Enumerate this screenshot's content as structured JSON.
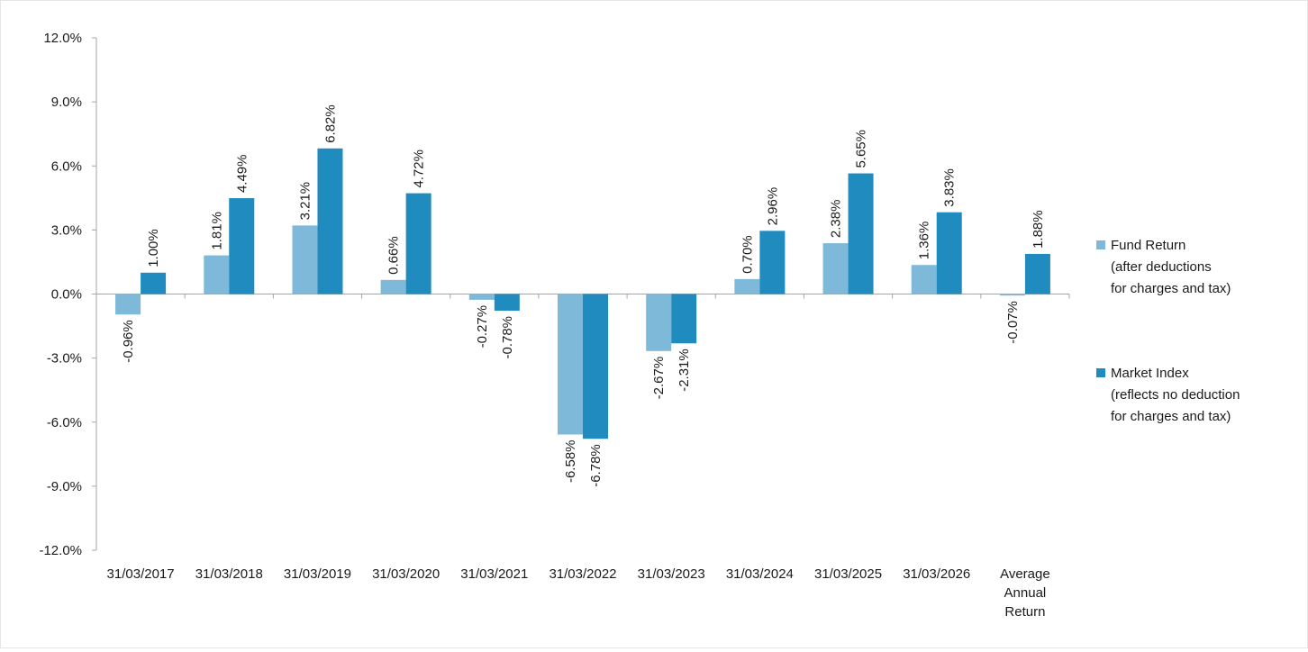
{
  "chart_data": {
    "type": "bar",
    "title": "",
    "xlabel": "",
    "ylabel": "",
    "categories": [
      [
        "31/03/2017"
      ],
      [
        "31/03/2018"
      ],
      [
        "31/03/2019"
      ],
      [
        "31/03/2020"
      ],
      [
        "31/03/2021"
      ],
      [
        "31/03/2022"
      ],
      [
        "31/03/2023"
      ],
      [
        "31/03/2024"
      ],
      [
        "31/03/2025"
      ],
      [
        "31/03/2026"
      ],
      [
        "Average",
        "Annual",
        "Return"
      ]
    ],
    "series": [
      {
        "name": [
          "Fund Return",
          "(after deductions",
          "for charges and tax)"
        ],
        "color": "#7fb9d9",
        "values": [
          -0.96,
          1.81,
          3.21,
          0.66,
          -0.27,
          -6.58,
          -2.67,
          0.7,
          2.38,
          1.36,
          -0.07
        ],
        "labels": [
          "-0.96%",
          "1.81%",
          "3.21%",
          "0.66%",
          "-0.27%",
          "-6.58%",
          "-2.67%",
          "0.70%",
          "2.38%",
          "1.36%",
          "-0.07%"
        ]
      },
      {
        "name": [
          "Market Index",
          "(reflects no deduction",
          "for charges and tax)"
        ],
        "color": "#1f8bbf",
        "values": [
          1.0,
          4.49,
          6.82,
          4.72,
          -0.78,
          -6.78,
          -2.31,
          2.96,
          5.65,
          3.83,
          1.88
        ],
        "labels": [
          "1.00%",
          "4.49%",
          "6.82%",
          "4.72%",
          "-0.78%",
          "-6.78%",
          "-2.31%",
          "2.96%",
          "5.65%",
          "3.83%",
          "1.88%"
        ]
      }
    ],
    "ylim": [
      -12,
      12
    ],
    "yticks": [
      12,
      9,
      6,
      3,
      0,
      -3,
      -6,
      -9,
      -12
    ],
    "ytick_labels": [
      "12.0%",
      "9.0%",
      "6.0%",
      "3.0%",
      "0.0%",
      "-3.0%",
      "-6.0%",
      "-9.0%",
      "-12.0%"
    ],
    "grid": false,
    "legend_position": "right"
  }
}
